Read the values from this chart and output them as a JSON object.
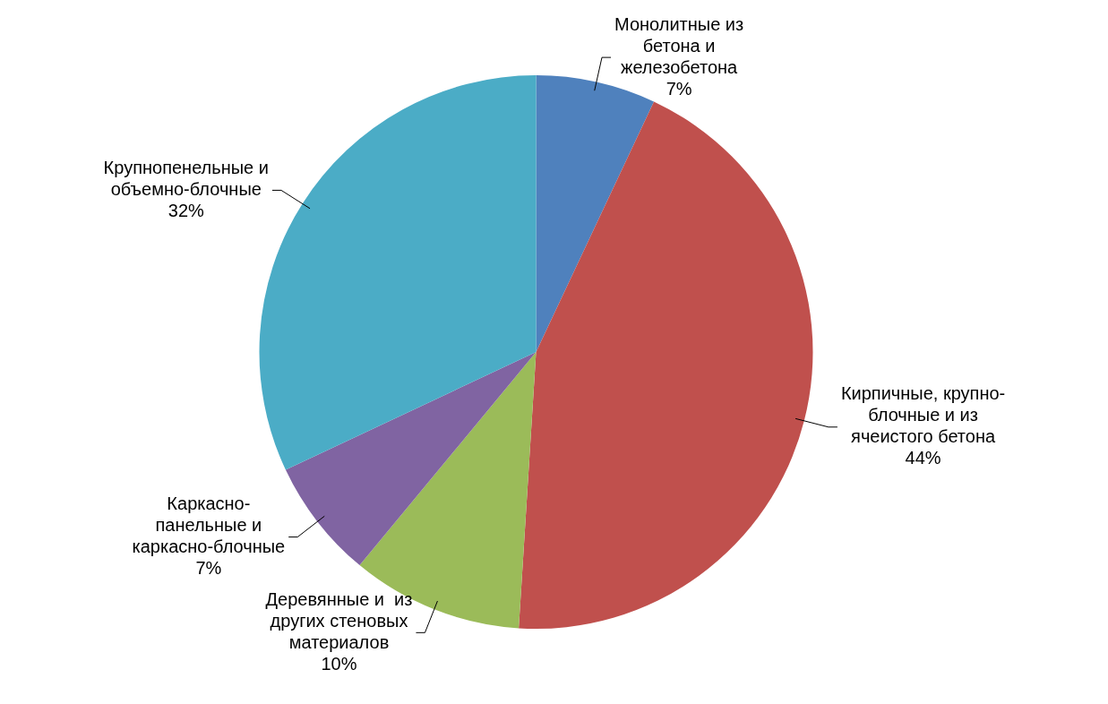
{
  "chart_data": {
    "type": "pie",
    "categories": [
      "Монолитные из\nбетона и\nжелезобетона",
      "Кирпичные, крупно-\nблочные и из\nячеистого бетона",
      "Деревянные и  из\nдругих стеновых\nматериалов",
      "Каркасно-\nпанельные и\nкаркасно-блочные",
      "Крупнопенельные и\nобъемно-блочные"
    ],
    "values": [
      7,
      44,
      10,
      7,
      32
    ],
    "colors": [
      "#4f81bd",
      "#c0504d",
      "#9bbb59",
      "#8064a2",
      "#4bacc6"
    ],
    "value_labels": [
      "7%",
      "44%",
      "10%",
      "7%",
      "32%"
    ],
    "legend": false
  }
}
